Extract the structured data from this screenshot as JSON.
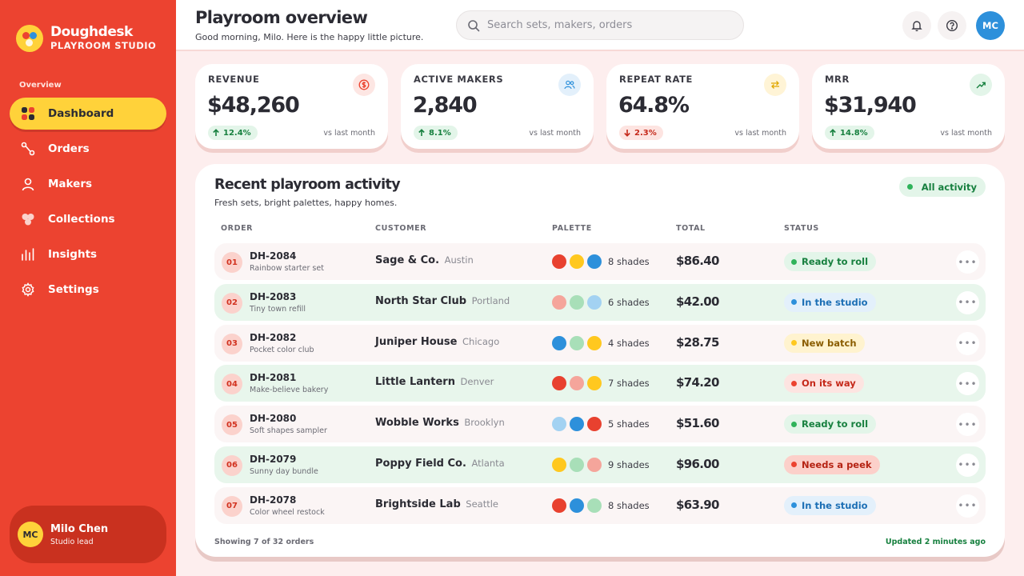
{
  "brand": {
    "name": "Doughdesk",
    "subtitle": "PLAYROOM STUDIO"
  },
  "sidebar": {
    "section_label": "Overview",
    "items": [
      {
        "label": "Dashboard",
        "icon": "grid-icon",
        "active": true
      },
      {
        "label": "Orders",
        "icon": "route-icon"
      },
      {
        "label": "Makers",
        "icon": "user-icon"
      },
      {
        "label": "Collections",
        "icon": "blobs-icon"
      },
      {
        "label": "Insights",
        "icon": "bar-chart-icon"
      },
      {
        "label": "Settings",
        "icon": "gear-icon"
      }
    ],
    "user": {
      "initials": "MC",
      "name": "Milo Chen",
      "role": "Studio lead"
    }
  },
  "header": {
    "title": "Playroom overview",
    "subtitle": "Good morning, Milo. Here is the happy little picture.",
    "search_placeholder": "Search sets, makers, orders",
    "avatar_initials": "MC"
  },
  "kpis": [
    {
      "label": "REVENUE",
      "value": "$48,260",
      "delta": "12.4%",
      "direction": "up",
      "vs": "vs last month",
      "icon": "dollar-icon",
      "icon_color": "#ec4330",
      "icon_bg": "#fde6e3"
    },
    {
      "label": "ACTIVE MAKERS",
      "value": "2,840",
      "delta": "8.1%",
      "direction": "up",
      "vs": "vs last month",
      "icon": "users-icon",
      "icon_color": "#2d90db",
      "icon_bg": "#e3f0fb"
    },
    {
      "label": "REPEAT RATE",
      "value": "64.8%",
      "delta": "2.3%",
      "direction": "down",
      "vs": "vs last month",
      "icon": "repeat-icon",
      "icon_color": "#e0a800",
      "icon_bg": "#fff4d6"
    },
    {
      "label": "MRR",
      "value": "$31,940",
      "delta": "14.8%",
      "direction": "up",
      "vs": "vs last month",
      "icon": "trend-up-icon",
      "icon_color": "#17803f",
      "icon_bg": "#e3f5e9"
    }
  ],
  "activity": {
    "title": "Recent playroom activity",
    "subtitle": "Fresh sets, bright palettes, happy homes.",
    "filter_label": "All activity",
    "columns": [
      "ORDER",
      "CUSTOMER",
      "PALETTE",
      "TOTAL",
      "STATUS"
    ],
    "rows": [
      {
        "num": "01",
        "id": "DH-2084",
        "desc": "Rainbow starter set",
        "customer": "Sage & Co.",
        "city": "Austin",
        "swatches": [
          "#e8412f",
          "#ffc81f",
          "#2d90db"
        ],
        "shades": "8 shades",
        "total": "$86.40",
        "status": "Ready to roll",
        "status_style": "st-green"
      },
      {
        "num": "02",
        "id": "DH-2083",
        "desc": "Tiny town refill",
        "customer": "North Star Club",
        "city": "Portland",
        "swatches": [
          "#f5a59b",
          "#a8dfb8",
          "#a3d2f2"
        ],
        "shades": "6 shades",
        "total": "$42.00",
        "status": "In the studio",
        "status_style": "st-blue"
      },
      {
        "num": "03",
        "id": "DH-2082",
        "desc": "Pocket color club",
        "customer": "Juniper House",
        "city": "Chicago",
        "swatches": [
          "#2d90db",
          "#a8dfb8",
          "#ffc81f"
        ],
        "shades": "4 shades",
        "total": "$28.75",
        "status": "New batch",
        "status_style": "st-yellow"
      },
      {
        "num": "04",
        "id": "DH-2081",
        "desc": "Make-believe bakery",
        "customer": "Little Lantern",
        "city": "Denver",
        "swatches": [
          "#e8412f",
          "#f5a59b",
          "#ffc81f"
        ],
        "shades": "7 shades",
        "total": "$74.20",
        "status": "On its way",
        "status_style": "st-pink"
      },
      {
        "num": "05",
        "id": "DH-2080",
        "desc": "Soft shapes sampler",
        "customer": "Wobble Works",
        "city": "Brooklyn",
        "swatches": [
          "#a3d2f2",
          "#2d90db",
          "#e8412f"
        ],
        "shades": "5 shades",
        "total": "$51.60",
        "status": "Ready to roll",
        "status_style": "st-green"
      },
      {
        "num": "06",
        "id": "DH-2079",
        "desc": "Sunny day bundle",
        "customer": "Poppy Field Co.",
        "city": "Atlanta",
        "swatches": [
          "#ffc81f",
          "#a8dfb8",
          "#f5a59b"
        ],
        "shades": "9 shades",
        "total": "$96.00",
        "status": "Needs a peek",
        "status_style": "st-red"
      },
      {
        "num": "07",
        "id": "DH-2078",
        "desc": "Color wheel restock",
        "customer": "Brightside Lab",
        "city": "Seattle",
        "swatches": [
          "#e8412f",
          "#2d90db",
          "#a8dfb8"
        ],
        "shades": "8 shades",
        "total": "$63.90",
        "status": "In the studio",
        "status_style": "st-blue"
      }
    ],
    "footer_left": "Showing 7 of 32 orders",
    "footer_right": "Updated 2 minutes ago"
  }
}
